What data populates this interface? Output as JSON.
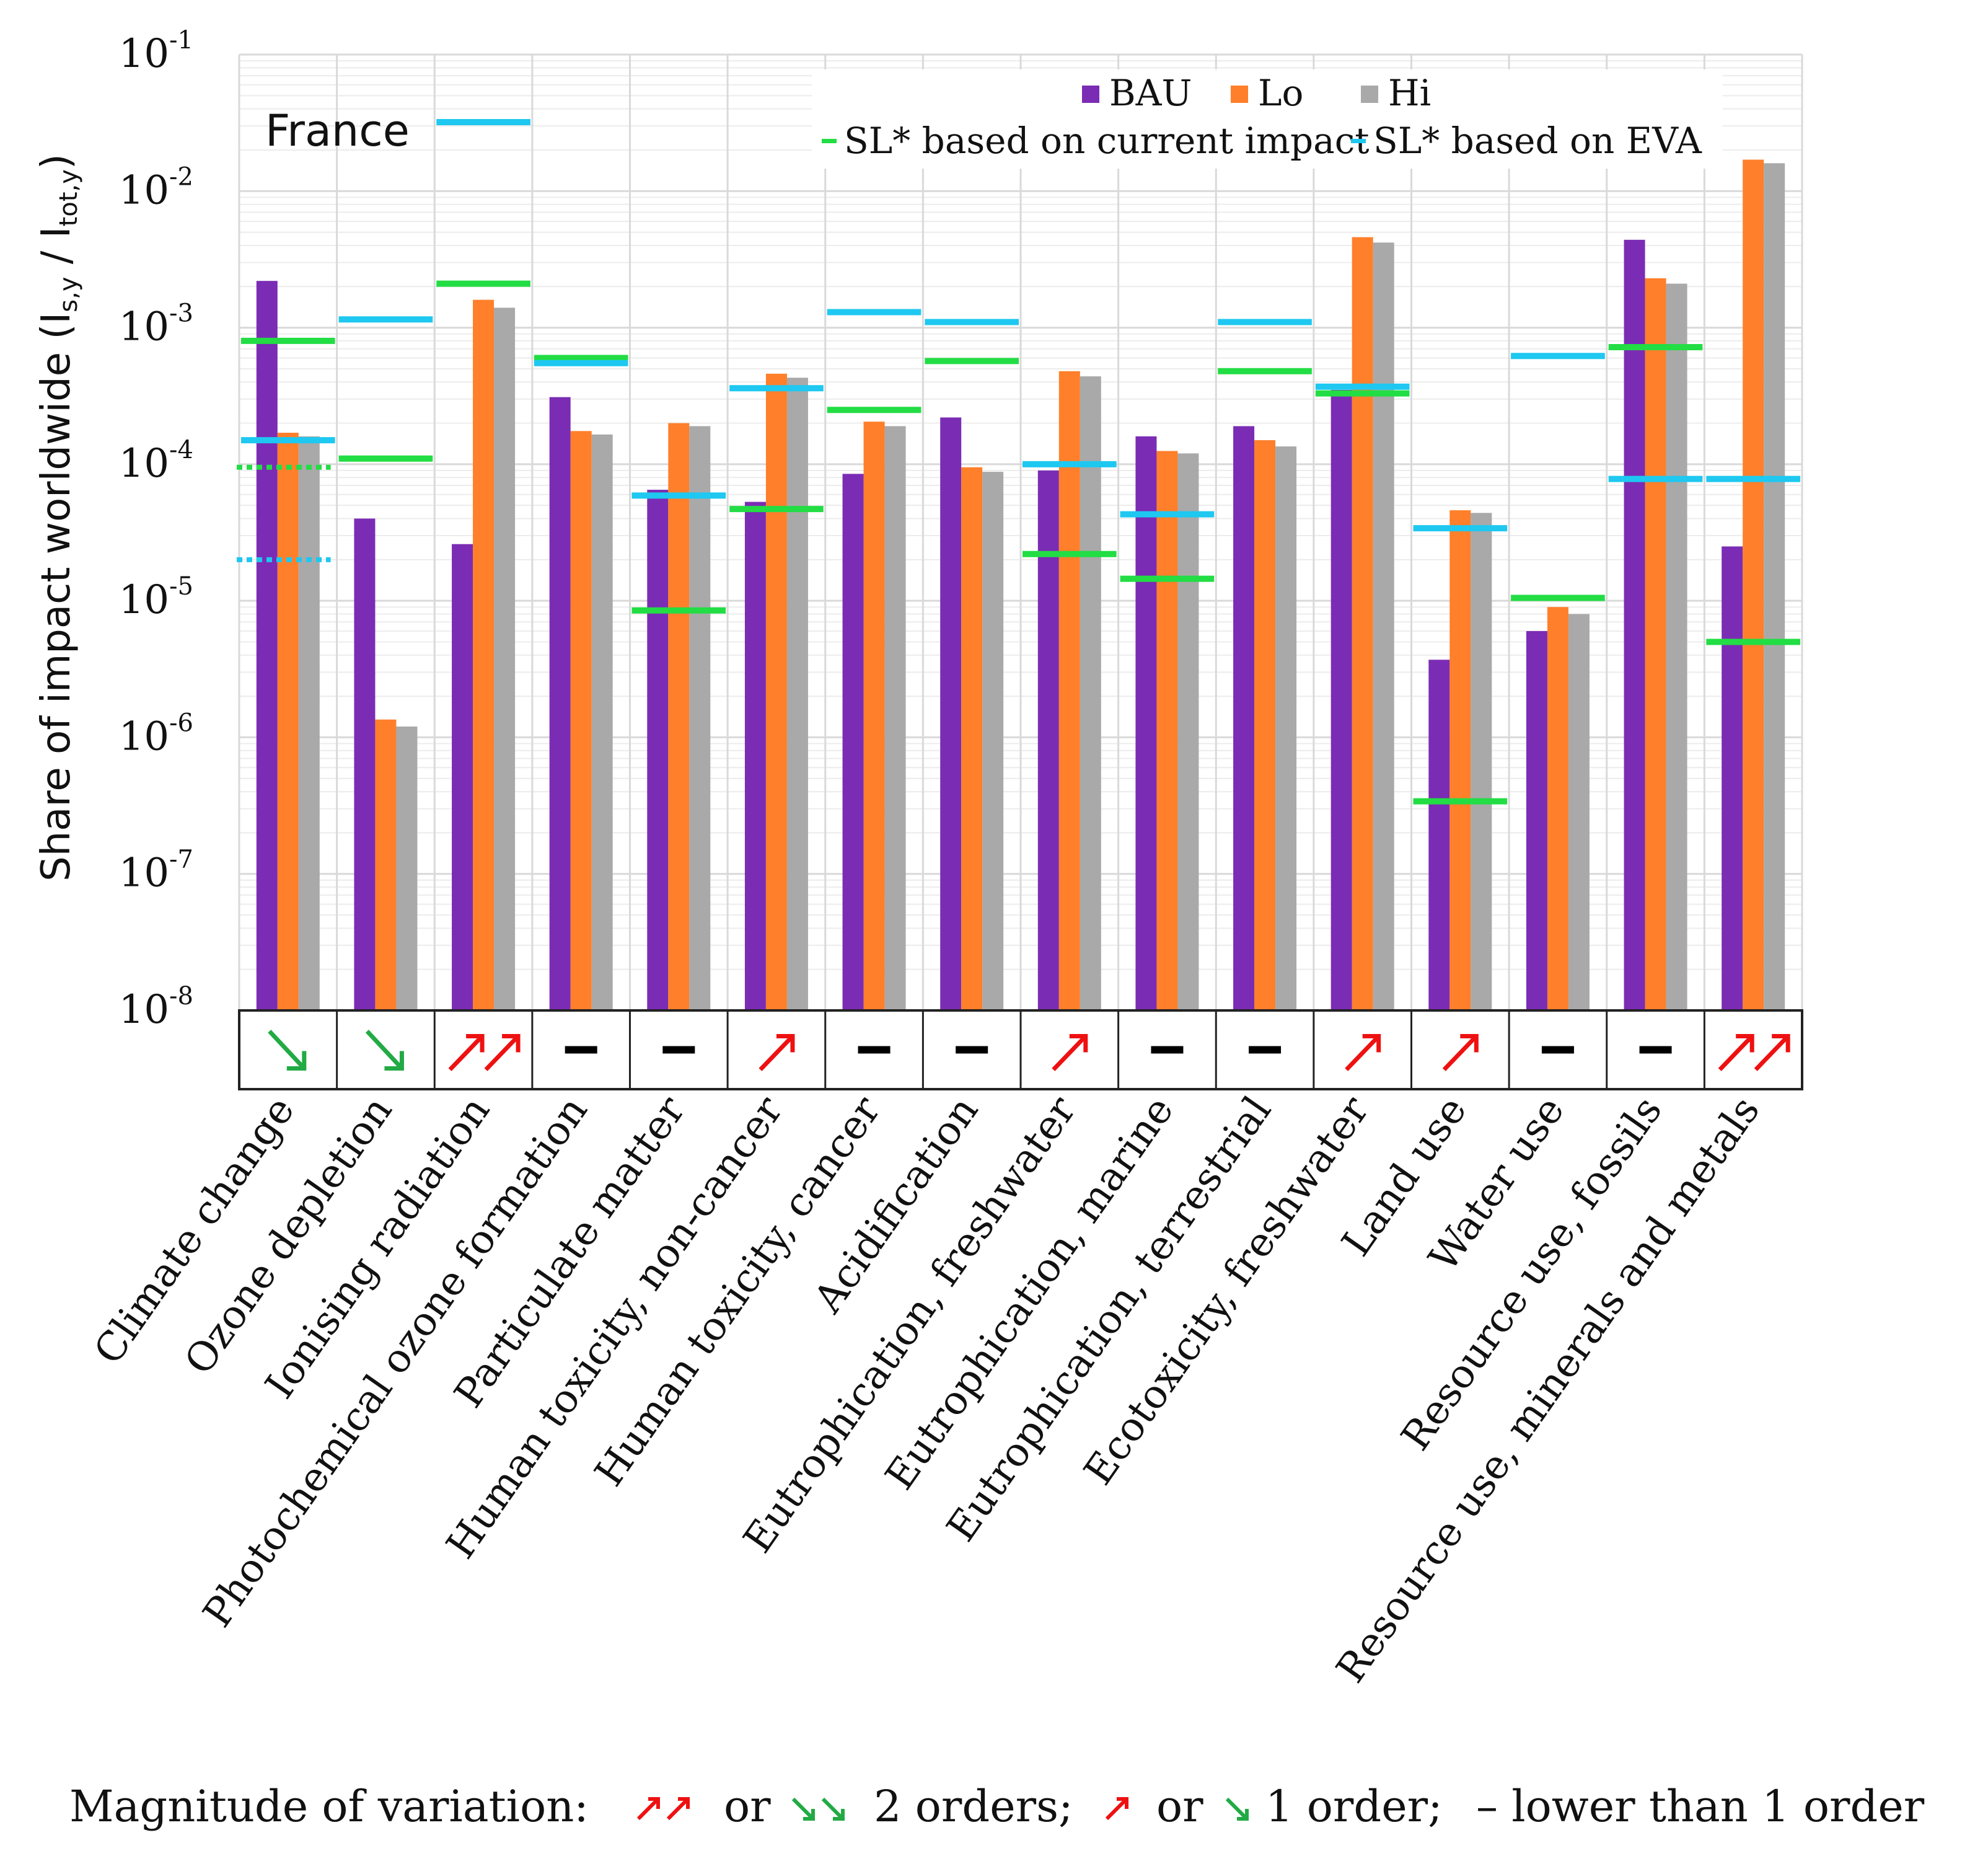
{
  "chart_data": {
    "type": "bar",
    "title": "France",
    "ylabel": {
      "prefix": "Share of impact worldwide (I",
      "sub1": "s,y",
      "mid": " / I",
      "sub2": "tot,y",
      "suffix": ")"
    },
    "yscale": "log",
    "ylim": [
      1e-08,
      0.1
    ],
    "ytick_exponents": [
      -8,
      -7,
      -6,
      -5,
      -4,
      -3,
      -2,
      -1
    ],
    "ytick_base": "10",
    "categories": [
      "Climate change",
      "Ozone depletion",
      "Ionising radiation",
      "Photochemical ozone formation",
      "Particulate matter",
      "Human toxicity, non-cancer",
      "Human toxicity, cancer",
      "Acidification",
      "Eutrophication, freshwater",
      "Eutrophication, marine",
      "Eutrophication, terrestrial",
      "Ecotoxicity, freshwater",
      "Land use",
      "Water use",
      "Resource use, fossils",
      "Resource use, minerals and metals"
    ],
    "series": [
      {
        "name": "BAU",
        "color": "#7b2cb4",
        "values": [
          0.0022,
          4e-05,
          2.6e-05,
          0.00031,
          6.5e-05,
          5.3e-05,
          8.5e-05,
          0.00022,
          9e-05,
          0.00016,
          0.00019,
          0.00035,
          3.7e-06,
          6e-06,
          0.0044,
          2.5e-05
        ]
      },
      {
        "name": "Lo",
        "color": "#ff7f2a",
        "values": [
          0.00017,
          1.35e-06,
          0.0016,
          0.000175,
          0.0002,
          0.00046,
          0.000205,
          9.5e-05,
          0.00048,
          0.000125,
          0.00015,
          0.0046,
          4.6e-05,
          9e-06,
          0.0023,
          0.017
        ]
      },
      {
        "name": "Hi",
        "color": "#a9a9a9",
        "values": [
          0.00016,
          1.2e-06,
          0.0014,
          0.000165,
          0.00019,
          0.00043,
          0.00019,
          8.8e-05,
          0.00044,
          0.00012,
          0.000135,
          0.0042,
          4.4e-05,
          8e-06,
          0.0021,
          0.016
        ]
      }
    ],
    "sl_current": {
      "name": "SL* based on current impact",
      "color": "#22dd44",
      "values": [
        0.0008,
        0.00011,
        0.0021,
        0.0006,
        8.5e-06,
        4.7e-05,
        0.00025,
        0.00057,
        2.2e-05,
        1.45e-05,
        0.00048,
        0.00033,
        3.4e-07,
        1.05e-05,
        0.00072,
        5e-06
      ]
    },
    "sl_eva": {
      "name": "SL* based on EVA",
      "color": "#1ec8f0",
      "values": [
        0.00015,
        0.00115,
        0.032,
        0.00055,
        5.9e-05,
        0.00036,
        0.0013,
        0.0011,
        0.0001,
        4.3e-05,
        0.0011,
        0.00037,
        3.4e-05,
        0.00062,
        7.8e-05,
        7.8e-05
      ]
    },
    "dotted_lines": [
      {
        "category": "Climate change",
        "color": "#22dd44",
        "value": 9.5e-05
      },
      {
        "category": "Climate change",
        "color": "#1ec8f0",
        "value": 2e-05
      }
    ],
    "variation": [
      "down1",
      "down1",
      "up2",
      "none",
      "none",
      "up1",
      "none",
      "none",
      "up1",
      "none",
      "none",
      "up1",
      "up1",
      "none",
      "none",
      "up2"
    ],
    "legend": {
      "items": [
        "BAU",
        "Lo",
        "Hi"
      ],
      "lines": [
        "SL* based on current impact",
        "SL* based on EVA"
      ],
      "position": "top-right"
    },
    "annotation": "France",
    "footnote": {
      "prefix": "Magnitude of variation:",
      "or1": "or",
      "two_orders": "2 orders;",
      "or2": "or",
      "one_order": "1 order;",
      "lower": "– lower than 1 order"
    }
  },
  "colors": {
    "up": "#ee1111",
    "down": "#22aa44",
    "none": "#000000",
    "grid": "#d9d9d9"
  }
}
